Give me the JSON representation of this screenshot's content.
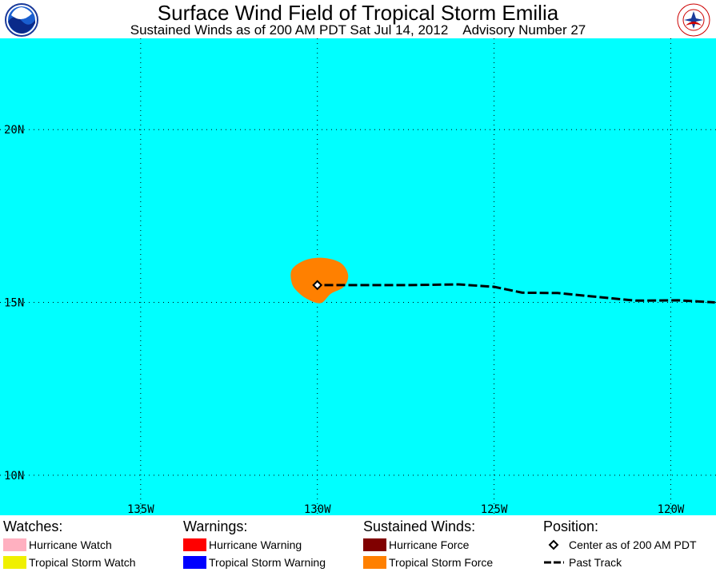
{
  "header": {
    "title": "Surface Wind Field of Tropical Storm Emilia",
    "subtitle": "Sustained Winds as of 200 AM PDT Sat Jul 14, 2012    Advisory Number 27",
    "left_logo": "noaa-logo",
    "right_logo": "nws-logo",
    "right_logo_text": "NATIONAL WEATHER SERVICE"
  },
  "map": {
    "background_color": "#00ffff",
    "lat_range": [
      8.84,
      22.64
    ],
    "lon_range": [
      -138.98,
      -118.72
    ],
    "lat_gridlines": [
      20,
      15,
      10
    ],
    "lon_gridlines": [
      -135,
      -130,
      -125,
      -120
    ],
    "lat_labels": [
      "20N",
      "15N",
      "10N"
    ],
    "lon_labels": [
      "135W",
      "130W",
      "125W",
      "120W"
    ],
    "storm_center": {
      "lat": 15.5,
      "lon": -130.0,
      "label": "Center as of 200 AM PDT"
    },
    "tropical_storm_force_wind_field": {
      "color": "#ff8000",
      "polygon": [
        [
          -130.72,
          15.95
        ],
        [
          -130.35,
          16.22
        ],
        [
          -129.85,
          16.29
        ],
        [
          -129.35,
          16.15
        ],
        [
          -129.13,
          15.8
        ],
        [
          -129.25,
          15.45
        ],
        [
          -129.62,
          15.25
        ],
        [
          -129.9,
          14.98
        ],
        [
          -130.25,
          15.08
        ],
        [
          -130.53,
          15.28
        ],
        [
          -130.72,
          15.55
        ]
      ]
    },
    "past_track": [
      [
        -129.8,
        15.5
      ],
      [
        -127.5,
        15.5
      ],
      [
        -126.0,
        15.52
      ],
      [
        -125.0,
        15.45
      ],
      [
        -124.2,
        15.28
      ],
      [
        -123.2,
        15.27
      ],
      [
        -122.0,
        15.15
      ],
      [
        -121.0,
        15.05
      ],
      [
        -119.8,
        15.06
      ],
      [
        -118.75,
        15.0
      ]
    ],
    "track_color": "#000000",
    "grid_style": "dotted"
  },
  "legend": {
    "watches": {
      "heading": "Watches:",
      "items": [
        {
          "label": "Hurricane Watch",
          "color": "#ffb0c0"
        },
        {
          "label": "Tropical Storm Watch",
          "color": "#f0f000"
        }
      ]
    },
    "warnings": {
      "heading": "Warnings:",
      "items": [
        {
          "label": "Hurricane Warning",
          "color": "#ff0000"
        },
        {
          "label": "Tropical Storm Warning",
          "color": "#0000ff"
        }
      ]
    },
    "winds": {
      "heading": "Sustained Winds:",
      "items": [
        {
          "label": "Hurricane Force",
          "color": "#800000"
        },
        {
          "label": "Tropical Storm Force",
          "color": "#ff8000"
        }
      ]
    },
    "position": {
      "heading": "Position:",
      "items": [
        {
          "label": "Center as of 200 AM PDT",
          "symbol": "diamond-icon"
        },
        {
          "label": "Past Track",
          "symbol": "dashed-line-icon"
        }
      ]
    }
  }
}
